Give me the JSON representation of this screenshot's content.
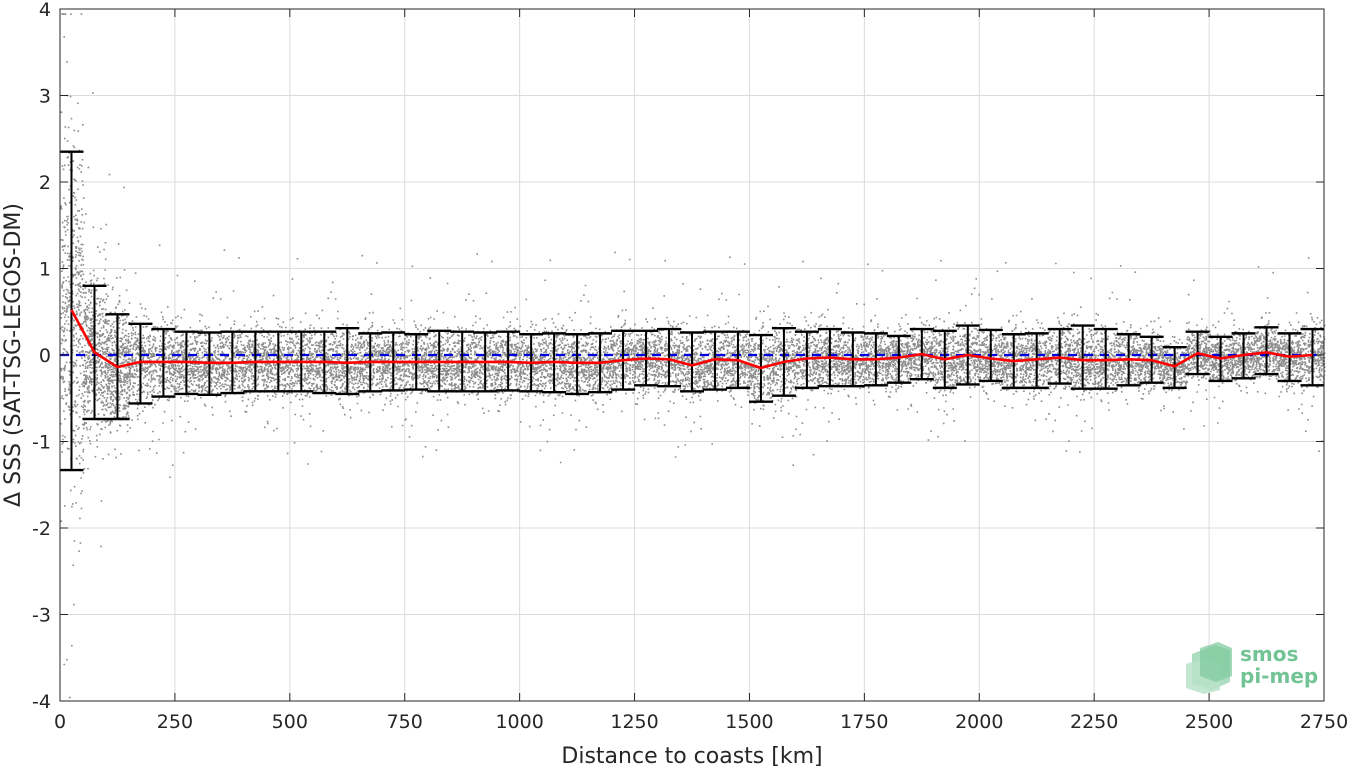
{
  "chart_data": {
    "type": "scatter",
    "title": "",
    "xlabel": "Distance to coasts [km]",
    "ylabel": "Δ SSS (SAT-TSG-LEGOS-DM)",
    "xlim": [
      0,
      2750
    ],
    "ylim": [
      -4,
      4
    ],
    "xticks": [
      "0",
      "250",
      "500",
      "750",
      "1000",
      "1250",
      "1500",
      "1750",
      "2000",
      "2250",
      "2500",
      "2750"
    ],
    "yticks": [
      "-4",
      "-3",
      "-2",
      "-1",
      "0",
      "1",
      "2",
      "3",
      "4"
    ],
    "grid": true,
    "zero_line": {
      "y": 0,
      "color": "#0000e0",
      "style": "dashed"
    },
    "colors": {
      "scatter": "#808080",
      "median": "#ff0000",
      "errorbar": "#000000",
      "zero": "#0000e0"
    },
    "bins": {
      "x": [
        25,
        75,
        125,
        175,
        225,
        275,
        325,
        375,
        425,
        475,
        525,
        575,
        625,
        675,
        725,
        775,
        825,
        875,
        925,
        975,
        1025,
        1075,
        1125,
        1175,
        1225,
        1275,
        1325,
        1375,
        1425,
        1475,
        1525,
        1575,
        1625,
        1675,
        1725,
        1775,
        1825,
        1875,
        1925,
        1975,
        2025,
        2075,
        2125,
        2175,
        2225,
        2275,
        2325,
        2375,
        2425,
        2475,
        2525,
        2575,
        2625,
        2675,
        2725
      ],
      "median": [
        0.52,
        0.03,
        -0.14,
        -0.08,
        -0.08,
        -0.08,
        -0.09,
        -0.09,
        -0.08,
        -0.08,
        -0.08,
        -0.08,
        -0.09,
        -0.08,
        -0.08,
        -0.08,
        -0.08,
        -0.08,
        -0.08,
        -0.08,
        -0.09,
        -0.08,
        -0.09,
        -0.09,
        -0.06,
        -0.04,
        -0.05,
        -0.12,
        -0.05,
        -0.06,
        -0.15,
        -0.08,
        -0.04,
        -0.03,
        -0.05,
        -0.05,
        -0.03,
        0.01,
        -0.05,
        0.0,
        -0.04,
        -0.07,
        -0.05,
        -0.03,
        -0.06,
        -0.06,
        -0.05,
        -0.06,
        -0.13,
        0.02,
        -0.04,
        0.0,
        0.03,
        -0.02,
        0.0
      ],
      "lower": [
        -1.33,
        -0.74,
        -0.74,
        -0.56,
        -0.48,
        -0.45,
        -0.46,
        -0.44,
        -0.42,
        -0.42,
        -0.42,
        -0.44,
        -0.45,
        -0.42,
        -0.41,
        -0.4,
        -0.42,
        -0.42,
        -0.42,
        -0.41,
        -0.42,
        -0.43,
        -0.45,
        -0.43,
        -0.4,
        -0.35,
        -0.36,
        -0.42,
        -0.4,
        -0.38,
        -0.54,
        -0.47,
        -0.38,
        -0.36,
        -0.36,
        -0.35,
        -0.32,
        -0.28,
        -0.38,
        -0.34,
        -0.3,
        -0.38,
        -0.38,
        -0.33,
        -0.39,
        -0.39,
        -0.35,
        -0.32,
        -0.38,
        -0.22,
        -0.3,
        -0.27,
        -0.22,
        -0.3,
        -0.35
      ],
      "upper": [
        2.35,
        0.8,
        0.47,
        0.36,
        0.3,
        0.27,
        0.26,
        0.27,
        0.27,
        0.27,
        0.27,
        0.27,
        0.31,
        0.25,
        0.26,
        0.24,
        0.28,
        0.27,
        0.26,
        0.27,
        0.24,
        0.25,
        0.24,
        0.25,
        0.28,
        0.28,
        0.3,
        0.26,
        0.27,
        0.27,
        0.23,
        0.31,
        0.27,
        0.3,
        0.26,
        0.25,
        0.22,
        0.3,
        0.28,
        0.34,
        0.29,
        0.24,
        0.25,
        0.3,
        0.34,
        0.3,
        0.24,
        0.21,
        0.09,
        0.27,
        0.21,
        0.25,
        0.32,
        0.25,
        0.3
      ]
    }
  },
  "logo": {
    "line1": "smos",
    "line2": "pi-mep",
    "color": "#73c495"
  }
}
